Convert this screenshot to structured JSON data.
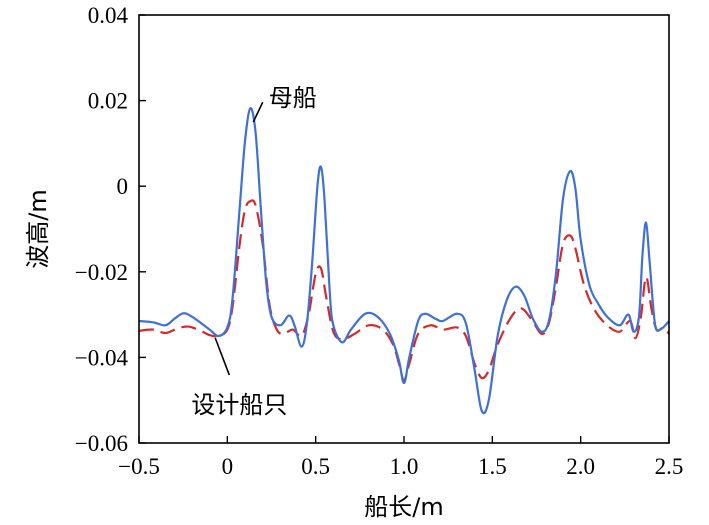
{
  "chart_data": {
    "type": "line",
    "title": "",
    "xlabel": "船长/m",
    "ylabel": "波高/m",
    "xlim": [
      -0.5,
      2.5
    ],
    "ylim": [
      -0.06,
      0.04
    ],
    "xticks": [
      -0.5,
      0,
      0.5,
      1.0,
      1.5,
      2.0,
      2.5
    ],
    "xtick_labels": [
      "−0.5",
      "0",
      "0.5",
      "1.0",
      "1.5",
      "2.0",
      "2.5"
    ],
    "yticks": [
      0.04,
      0.02,
      0,
      -0.02,
      -0.04,
      -0.06
    ],
    "ytick_labels": [
      "0.04",
      "0.02",
      "0",
      "−0.02",
      "−0.04",
      "−0.06"
    ],
    "grid": false,
    "legend": "none",
    "series": [
      {
        "name": "母船",
        "color": "#3f6fd8",
        "dash": "solid",
        "points": [
          [
            -0.5,
            -0.0315
          ],
          [
            -0.42,
            -0.0318
          ],
          [
            -0.35,
            -0.0325
          ],
          [
            -0.3,
            -0.031
          ],
          [
            -0.25,
            -0.0297
          ],
          [
            -0.2,
            -0.0305
          ],
          [
            -0.1,
            -0.0335
          ],
          [
            -0.05,
            -0.035
          ],
          [
            0.0,
            -0.033
          ],
          [
            0.03,
            -0.026
          ],
          [
            0.07,
            -0.005
          ],
          [
            0.1,
            0.0105
          ],
          [
            0.13,
            0.0182
          ],
          [
            0.16,
            0.0125
          ],
          [
            0.19,
            -0.0055
          ],
          [
            0.22,
            -0.0225
          ],
          [
            0.25,
            -0.0305
          ],
          [
            0.3,
            -0.0325
          ],
          [
            0.35,
            -0.0302
          ],
          [
            0.38,
            -0.0325
          ],
          [
            0.42,
            -0.0375
          ],
          [
            0.45,
            -0.0322
          ],
          [
            0.48,
            -0.018
          ],
          [
            0.51,
            0.0
          ],
          [
            0.53,
            0.0045
          ],
          [
            0.55,
            -0.003
          ],
          [
            0.58,
            -0.025
          ],
          [
            0.6,
            -0.0325
          ],
          [
            0.65,
            -0.0365
          ],
          [
            0.7,
            -0.0335
          ],
          [
            0.78,
            -0.0298
          ],
          [
            0.85,
            -0.0305
          ],
          [
            0.92,
            -0.0345
          ],
          [
            0.97,
            -0.0405
          ],
          [
            1.0,
            -0.046
          ],
          [
            1.03,
            -0.04
          ],
          [
            1.08,
            -0.0315
          ],
          [
            1.12,
            -0.0298
          ],
          [
            1.18,
            -0.031
          ],
          [
            1.22,
            -0.0315
          ],
          [
            1.3,
            -0.0298
          ],
          [
            1.35,
            -0.032
          ],
          [
            1.4,
            -0.043
          ],
          [
            1.44,
            -0.0525
          ],
          [
            1.48,
            -0.05
          ],
          [
            1.53,
            -0.035
          ],
          [
            1.58,
            -0.0268
          ],
          [
            1.63,
            -0.0235
          ],
          [
            1.68,
            -0.0255
          ],
          [
            1.73,
            -0.031
          ],
          [
            1.78,
            -0.034
          ],
          [
            1.82,
            -0.0315
          ],
          [
            1.86,
            -0.0205
          ],
          [
            1.9,
            -0.003
          ],
          [
            1.94,
            0.0035
          ],
          [
            1.97,
            -0.0005
          ],
          [
            2.0,
            -0.0125
          ],
          [
            2.05,
            -0.0232
          ],
          [
            2.1,
            -0.0275
          ],
          [
            2.15,
            -0.0305
          ],
          [
            2.22,
            -0.0325
          ],
          [
            2.27,
            -0.03
          ],
          [
            2.3,
            -0.034
          ],
          [
            2.33,
            -0.0305
          ],
          [
            2.35,
            -0.016
          ],
          [
            2.37,
            -0.0085
          ],
          [
            2.39,
            -0.0175
          ],
          [
            2.42,
            -0.032
          ],
          [
            2.45,
            -0.0335
          ],
          [
            2.5,
            -0.0315
          ]
        ]
      },
      {
        "name": "设计船只",
        "color": "#d42a2a",
        "dash": "dashed",
        "points": [
          [
            -0.5,
            -0.0338
          ],
          [
            -0.42,
            -0.0335
          ],
          [
            -0.35,
            -0.0343
          ],
          [
            -0.28,
            -0.0332
          ],
          [
            -0.22,
            -0.0328
          ],
          [
            -0.15,
            -0.0338
          ],
          [
            -0.1,
            -0.0348
          ],
          [
            -0.05,
            -0.035
          ],
          [
            0.0,
            -0.0335
          ],
          [
            0.03,
            -0.028
          ],
          [
            0.07,
            -0.0135
          ],
          [
            0.1,
            -0.0055
          ],
          [
            0.13,
            -0.0035
          ],
          [
            0.16,
            -0.0045
          ],
          [
            0.2,
            -0.0135
          ],
          [
            0.24,
            -0.028
          ],
          [
            0.28,
            -0.0335
          ],
          [
            0.32,
            -0.0345
          ],
          [
            0.37,
            -0.0335
          ],
          [
            0.42,
            -0.035
          ],
          [
            0.46,
            -0.03
          ],
          [
            0.5,
            -0.0205
          ],
          [
            0.53,
            -0.0192
          ],
          [
            0.56,
            -0.026
          ],
          [
            0.6,
            -0.034
          ],
          [
            0.65,
            -0.0358
          ],
          [
            0.72,
            -0.0345
          ],
          [
            0.8,
            -0.0325
          ],
          [
            0.88,
            -0.0335
          ],
          [
            0.94,
            -0.0372
          ],
          [
            0.98,
            -0.0428
          ],
          [
            1.0,
            -0.0455
          ],
          [
            1.03,
            -0.0415
          ],
          [
            1.08,
            -0.0345
          ],
          [
            1.15,
            -0.0325
          ],
          [
            1.22,
            -0.0335
          ],
          [
            1.3,
            -0.033
          ],
          [
            1.35,
            -0.035
          ],
          [
            1.4,
            -0.0415
          ],
          [
            1.44,
            -0.0448
          ],
          [
            1.48,
            -0.043
          ],
          [
            1.53,
            -0.037
          ],
          [
            1.6,
            -0.031
          ],
          [
            1.66,
            -0.0285
          ],
          [
            1.72,
            -0.031
          ],
          [
            1.78,
            -0.0345
          ],
          [
            1.82,
            -0.032
          ],
          [
            1.86,
            -0.0235
          ],
          [
            1.9,
            -0.0135
          ],
          [
            1.94,
            -0.0115
          ],
          [
            1.97,
            -0.0145
          ],
          [
            2.02,
            -0.0232
          ],
          [
            2.08,
            -0.029
          ],
          [
            2.15,
            -0.0325
          ],
          [
            2.22,
            -0.034
          ],
          [
            2.28,
            -0.0315
          ],
          [
            2.31,
            -0.0355
          ],
          [
            2.34,
            -0.0308
          ],
          [
            2.37,
            -0.0212
          ],
          [
            2.4,
            -0.0285
          ],
          [
            2.43,
            -0.0335
          ],
          [
            2.47,
            -0.033
          ],
          [
            2.5,
            -0.0345
          ]
        ]
      }
    ],
    "annotations": [
      {
        "text": "母船",
        "series": "母船",
        "x": 0.13,
        "y": 0.0178,
        "label_x": 0.54,
        "label_y": 0.0215
      },
      {
        "text": "设计船只",
        "series": "设计船只",
        "x": -0.08,
        "y": -0.0345,
        "label_x": 0.0,
        "label_y": -0.046
      }
    ]
  }
}
